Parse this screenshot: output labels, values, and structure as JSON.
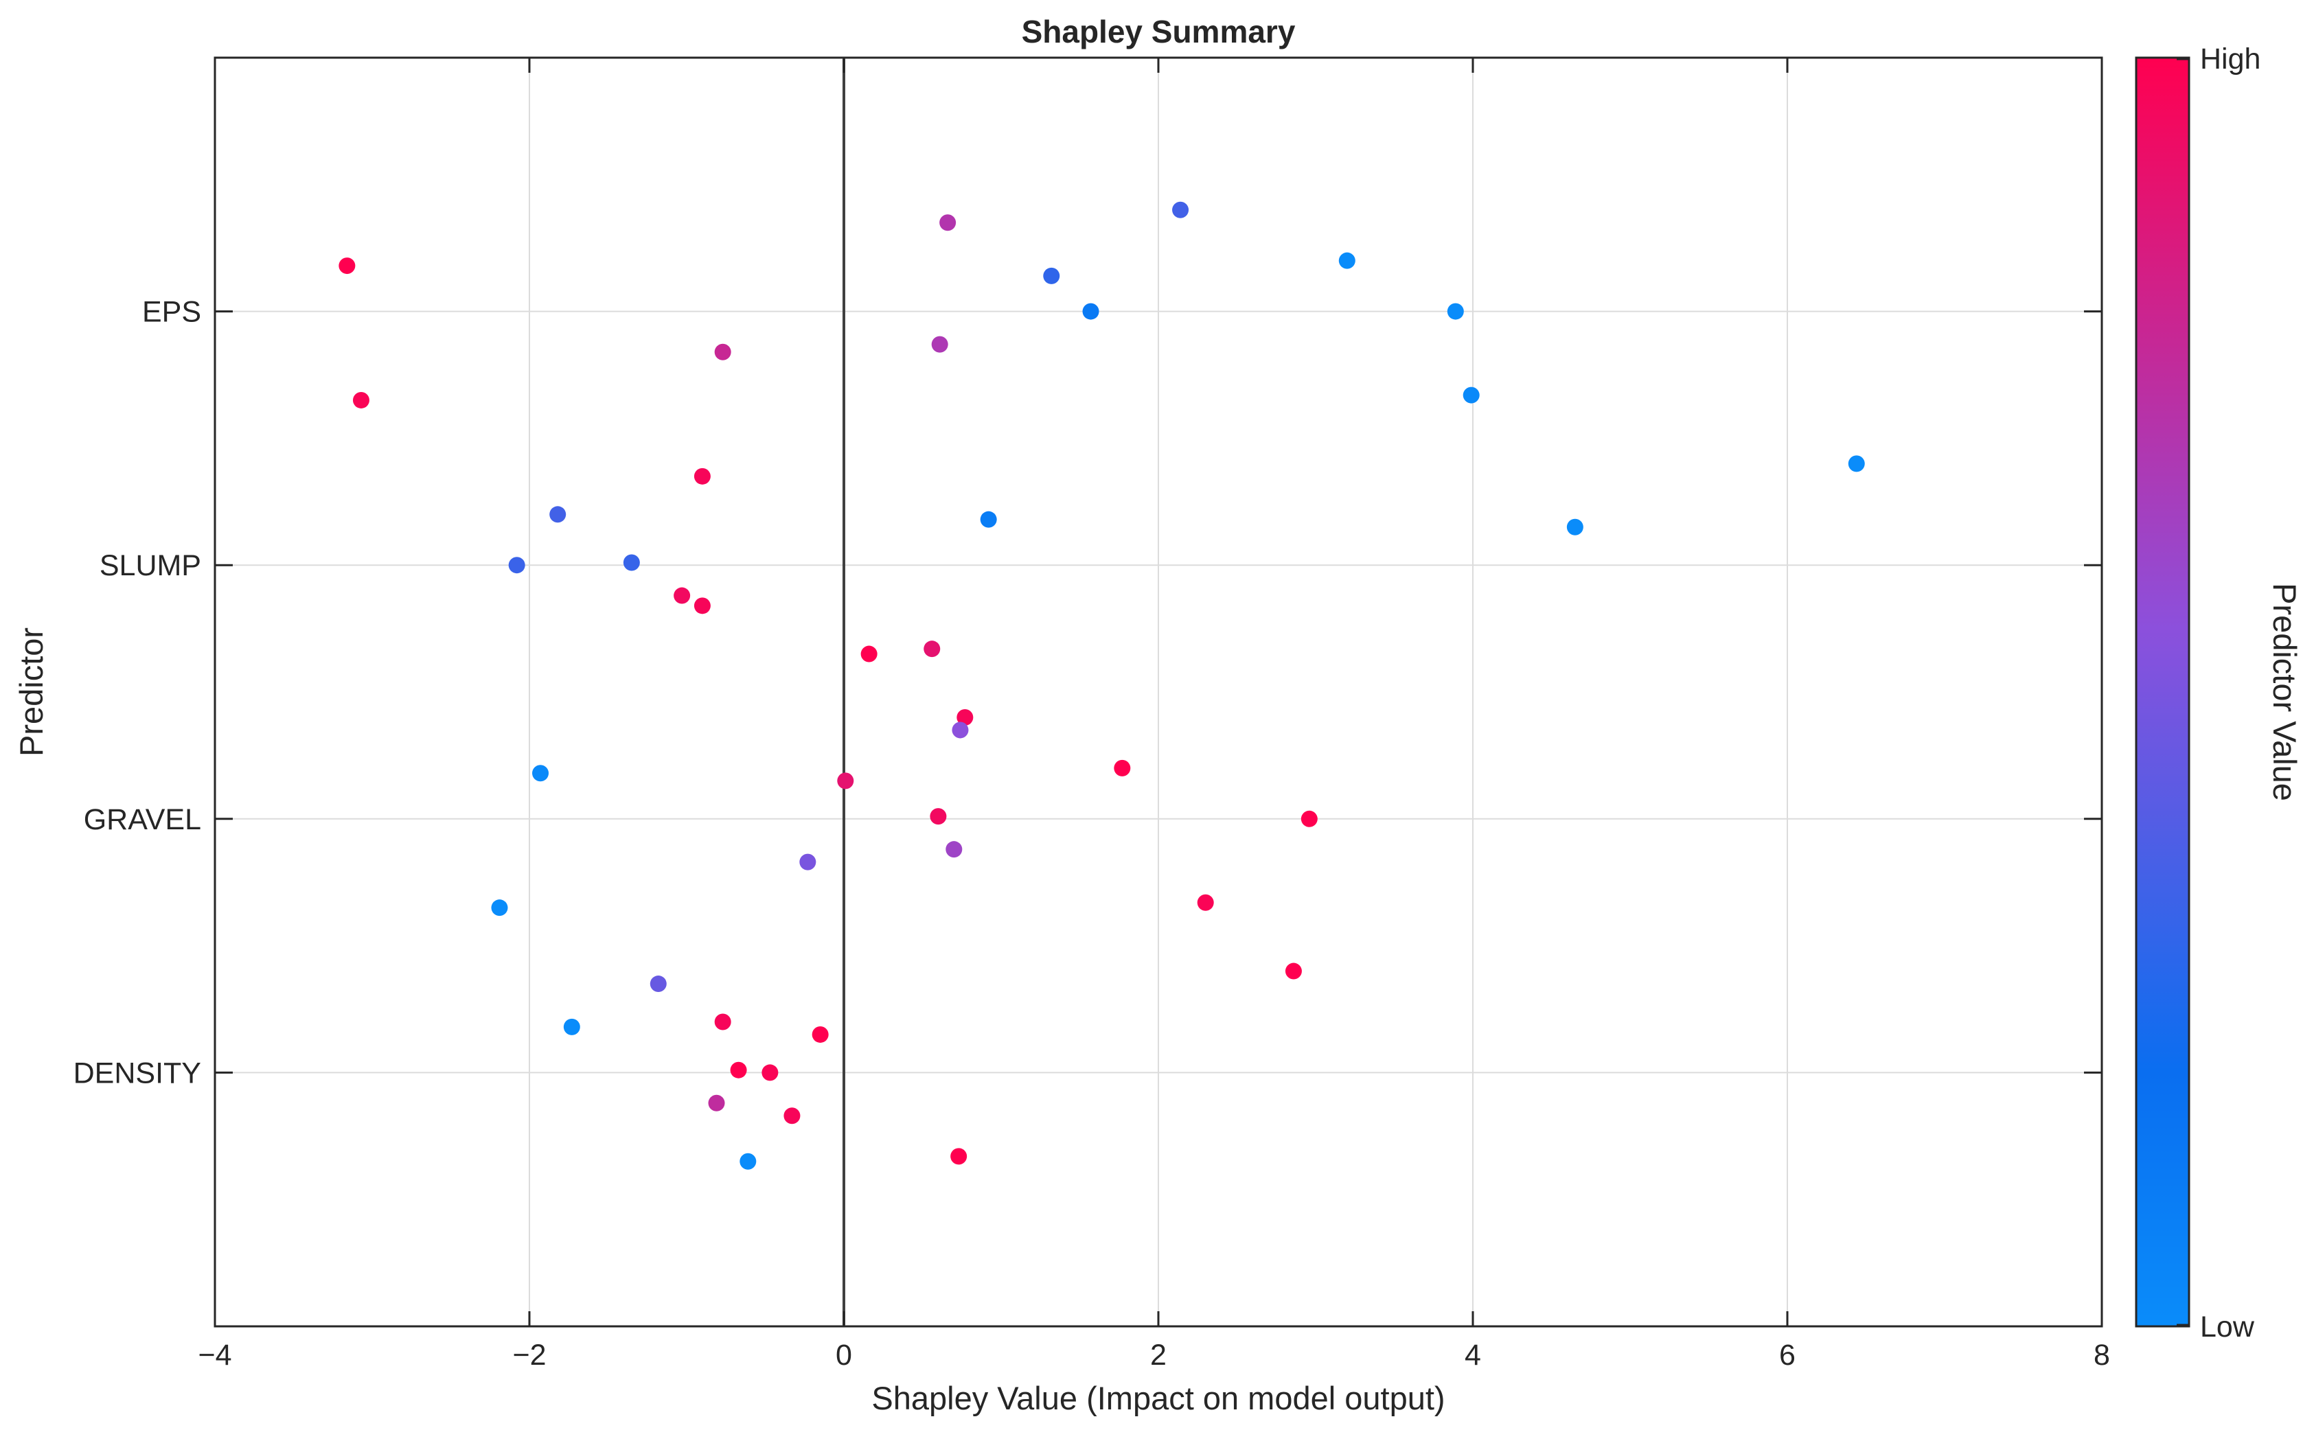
{
  "chart_data": {
    "type": "scatter",
    "title": "Shapley Summary",
    "xlabel": "Shapley Value (Impact on model output)",
    "ylabel": "Predictor",
    "xlim": [
      -4,
      8
    ],
    "xticks": [
      -4,
      -2,
      0,
      2,
      4,
      6,
      8
    ],
    "x_tick_labels": [
      "−4",
      "−2",
      "0",
      "2",
      "4",
      "6",
      "8"
    ],
    "ylim": [
      0.5,
      5.5
    ],
    "grid": true,
    "categories": [
      "EPS",
      "SLUMP",
      "GRAVEL",
      "DENSITY"
    ],
    "colorbar": {
      "label": "Predictor Value",
      "high_label": "High",
      "low_label": "Low",
      "low_color": "#0a8cfa",
      "mid_color": "#8c50dc",
      "high_color": "#ff0050"
    },
    "points": [
      {
        "predictor": "EPS",
        "x": -3.16,
        "jitter": 0.18,
        "v": 1.0
      },
      {
        "predictor": "EPS",
        "x": -3.07,
        "jitter": -0.35,
        "v": 0.98
      },
      {
        "predictor": "EPS",
        "x": -0.77,
        "jitter": -0.16,
        "v": 0.78
      },
      {
        "predictor": "EPS",
        "x": 0.66,
        "jitter": 0.35,
        "v": 0.7
      },
      {
        "predictor": "EPS",
        "x": 0.61,
        "jitter": -0.13,
        "v": 0.68
      },
      {
        "predictor": "EPS",
        "x": 1.32,
        "jitter": 0.14,
        "v": 0.3
      },
      {
        "predictor": "EPS",
        "x": 1.57,
        "jitter": 0.0,
        "v": 0.12
      },
      {
        "predictor": "EPS",
        "x": 2.14,
        "jitter": 0.4,
        "v": 0.35
      },
      {
        "predictor": "EPS",
        "x": 3.2,
        "jitter": 0.2,
        "v": 0.0
      },
      {
        "predictor": "EPS",
        "x": 3.89,
        "jitter": 0.0,
        "v": 0.0
      },
      {
        "predictor": "EPS",
        "x": 3.99,
        "jitter": -0.33,
        "v": 0.02
      },
      {
        "predictor": "EPS",
        "x": 6.44,
        "jitter": -0.6,
        "v": 0.0
      },
      {
        "predictor": "SLUMP",
        "x": -0.9,
        "jitter": 0.35,
        "v": 0.97
      },
      {
        "predictor": "SLUMP",
        "x": -1.82,
        "jitter": 0.2,
        "v": 0.35
      },
      {
        "predictor": "SLUMP",
        "x": -2.08,
        "jitter": 0.0,
        "v": 0.33
      },
      {
        "predictor": "SLUMP",
        "x": -1.35,
        "jitter": 0.01,
        "v": 0.32
      },
      {
        "predictor": "SLUMP",
        "x": -1.03,
        "jitter": -0.12,
        "v": 0.95
      },
      {
        "predictor": "SLUMP",
        "x": -0.9,
        "jitter": -0.16,
        "v": 0.97
      },
      {
        "predictor": "SLUMP",
        "x": 0.16,
        "jitter": -0.35,
        "v": 1.0
      },
      {
        "predictor": "SLUMP",
        "x": 0.56,
        "jitter": -0.33,
        "v": 0.9
      },
      {
        "predictor": "SLUMP",
        "x": 0.92,
        "jitter": 0.18,
        "v": 0.1
      },
      {
        "predictor": "SLUMP",
        "x": 4.65,
        "jitter": 0.15,
        "v": 0.0
      },
      {
        "predictor": "GRAVEL",
        "x": -1.93,
        "jitter": 0.18,
        "v": 0.02
      },
      {
        "predictor": "GRAVEL",
        "x": 0.01,
        "jitter": 0.15,
        "v": 0.9
      },
      {
        "predictor": "GRAVEL",
        "x": 0.77,
        "jitter": 0.4,
        "v": 0.97
      },
      {
        "predictor": "GRAVEL",
        "x": 0.74,
        "jitter": 0.35,
        "v": 0.55
      },
      {
        "predictor": "GRAVEL",
        "x": 1.77,
        "jitter": 0.2,
        "v": 1.0
      },
      {
        "predictor": "GRAVEL",
        "x": 0.6,
        "jitter": 0.01,
        "v": 0.95
      },
      {
        "predictor": "GRAVEL",
        "x": 2.96,
        "jitter": 0.0,
        "v": 1.0
      },
      {
        "predictor": "GRAVEL",
        "x": 0.7,
        "jitter": -0.12,
        "v": 0.62
      },
      {
        "predictor": "GRAVEL",
        "x": -0.23,
        "jitter": -0.17,
        "v": 0.5
      },
      {
        "predictor": "GRAVEL",
        "x": -2.19,
        "jitter": -0.35,
        "v": 0.0
      },
      {
        "predictor": "GRAVEL",
        "x": 2.3,
        "jitter": -0.33,
        "v": 0.98
      },
      {
        "predictor": "DENSITY",
        "x": 2.86,
        "jitter": 0.4,
        "v": 1.0
      },
      {
        "predictor": "DENSITY",
        "x": -1.18,
        "jitter": 0.35,
        "v": 0.45
      },
      {
        "predictor": "DENSITY",
        "x": -1.73,
        "jitter": 0.18,
        "v": 0.0
      },
      {
        "predictor": "DENSITY",
        "x": -0.77,
        "jitter": 0.2,
        "v": 0.97
      },
      {
        "predictor": "DENSITY",
        "x": -0.15,
        "jitter": 0.15,
        "v": 1.0
      },
      {
        "predictor": "DENSITY",
        "x": -0.67,
        "jitter": 0.01,
        "v": 1.0
      },
      {
        "predictor": "DENSITY",
        "x": -0.47,
        "jitter": 0.0,
        "v": 0.98
      },
      {
        "predictor": "DENSITY",
        "x": -0.81,
        "jitter": -0.12,
        "v": 0.75
      },
      {
        "predictor": "DENSITY",
        "x": -0.33,
        "jitter": -0.17,
        "v": 0.97
      },
      {
        "predictor": "DENSITY",
        "x": -0.61,
        "jitter": -0.35,
        "v": 0.0
      },
      {
        "predictor": "DENSITY",
        "x": 0.73,
        "jitter": -0.33,
        "v": 1.0
      }
    ]
  }
}
